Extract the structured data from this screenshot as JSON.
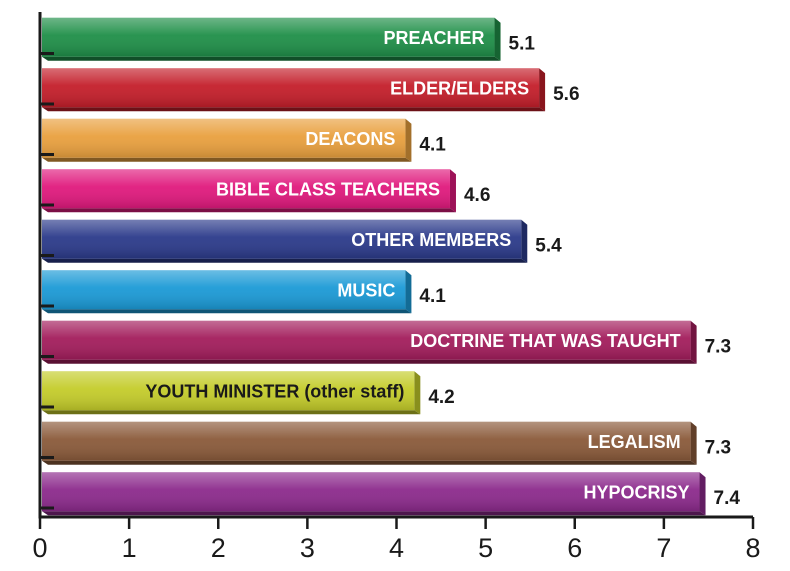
{
  "chart_data": {
    "type": "bar",
    "orientation": "horizontal",
    "title": "",
    "xlabel": "",
    "ylabel": "",
    "xlim": [
      0,
      8
    ],
    "x_ticks": [
      "0",
      "1",
      "2",
      "3",
      "4",
      "5",
      "6",
      "7",
      "8"
    ],
    "grid": false,
    "legend": "none",
    "categories": [
      "PREACHER",
      "ELDER/ELDERS",
      "DEACONS",
      "BIBLE CLASS TEACHERS",
      "OTHER MEMBERS",
      "MUSIC",
      "DOCTRINE THAT WAS TAUGHT",
      "YOUTH MINISTER (other staff)",
      "LEGALISM",
      "HYPOCRISY"
    ],
    "values": [
      5.1,
      5.6,
      4.1,
      4.6,
      5.4,
      4.1,
      7.3,
      4.2,
      7.3,
      7.4
    ],
    "value_labels": [
      "5.1",
      "5.6",
      "4.1",
      "4.6",
      "5.4",
      "4.1",
      "7.3",
      "4.2",
      "7.3",
      "7.4"
    ],
    "colors": [
      "#1f8f48",
      "#c41e2a",
      "#e9a03e",
      "#e0197d",
      "#2b3a8a",
      "#1b9ad6",
      "#a31d5c",
      "#c4cc2a",
      "#8a5a3a",
      "#8c2a8c"
    ],
    "dark_label_index": [
      7
    ]
  }
}
